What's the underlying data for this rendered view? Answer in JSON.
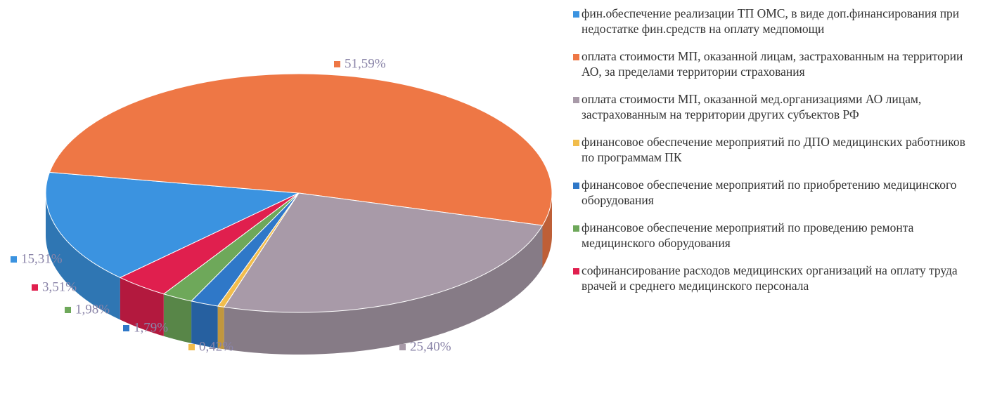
{
  "chart_data": {
    "type": "pie3d",
    "categories": [
      "фин.обеспечение реализации ТП ОМС, в виде доп.финансирования при недостатке фин.средств на оплату медпомощи",
      "оплата стоимости МП, оказанной лицам, застрахованным на территории АО, за пределами территории страхования",
      "оплата стоимости МП, оказанной мед.организациями АО лицам, застрахованным на территории других субъектов РФ",
      "финансовое обеспечение мероприятий по ДПО медицинских работников по программам ПК",
      "финансовое обеспечение мероприятий по приобретению медицинского оборудования",
      "финансовое обеспечение мероприятий по проведению ремонта медицинского оборудования",
      "софинансирование расходов медицинских организаций на оплату труда врачей и среднего медицинского персонала"
    ],
    "values": [
      15.31,
      51.59,
      25.4,
      0.42,
      1.79,
      1.98,
      3.51
    ],
    "value_labels": [
      "15,31%",
      "51,59%",
      "25,40%",
      "0,42%",
      "1,79%",
      "1,98%",
      "3,51%"
    ],
    "colors": [
      "#3b93e0",
      "#ee7745",
      "#a89aa8",
      "#f1bd4c",
      "#2f78c8",
      "#6ea85a",
      "#e01f4e"
    ],
    "legend": "right"
  }
}
